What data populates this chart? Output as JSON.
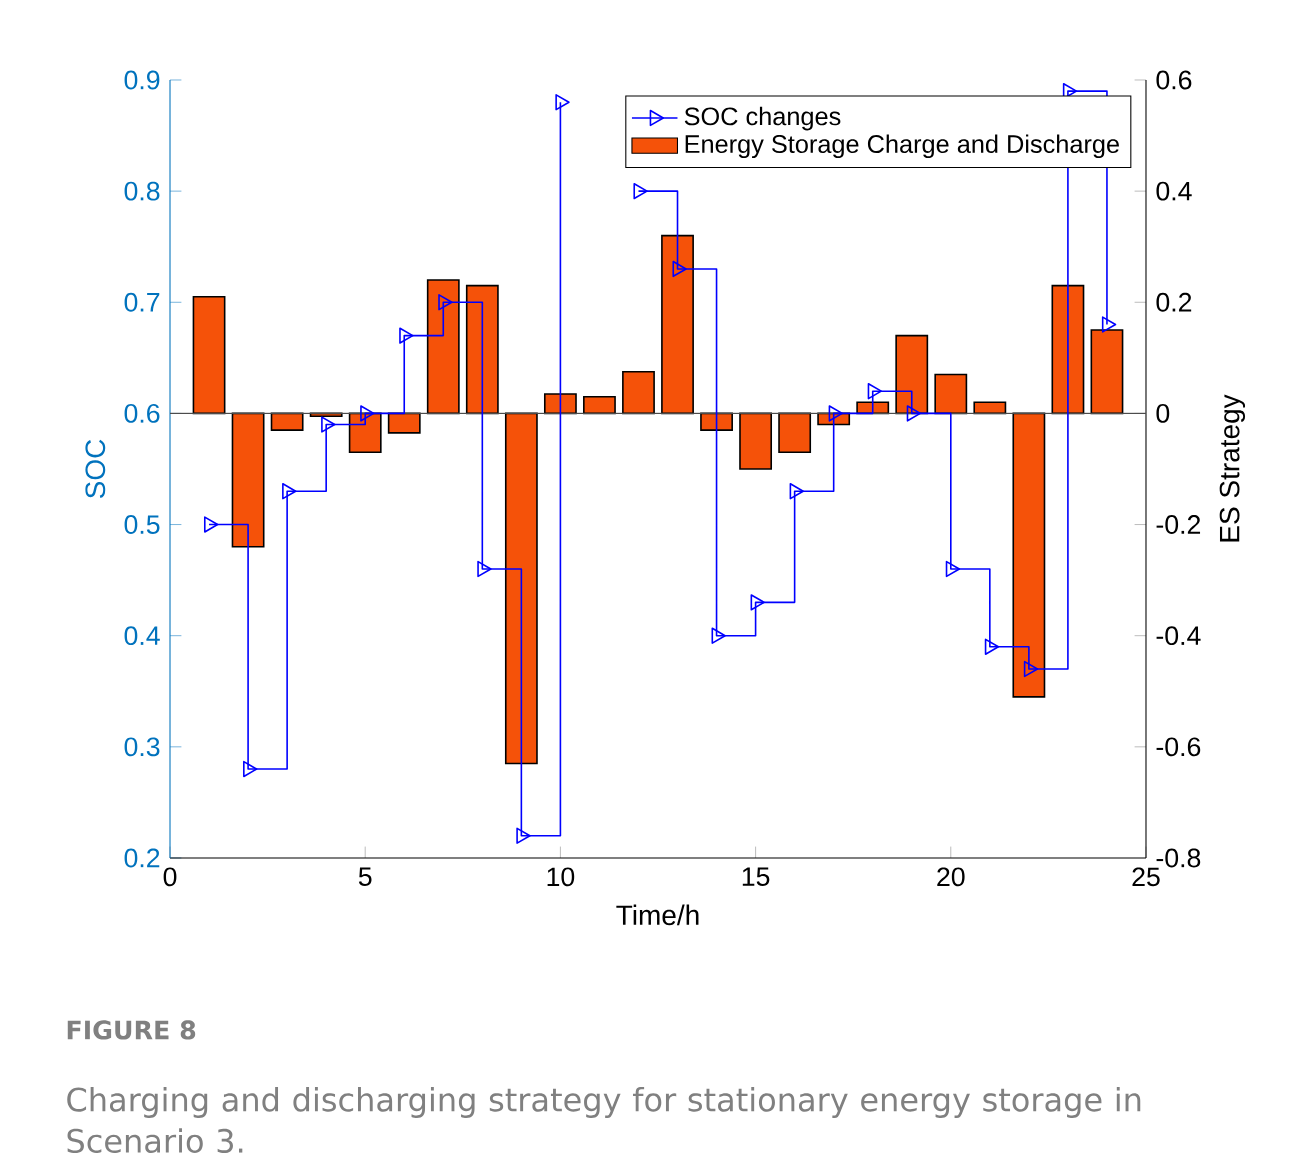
{
  "chart_data": {
    "type": "bar",
    "xlabel": "Time/h",
    "ylabel": "SOC",
    "y2label": "ES Strategy",
    "x": [
      1,
      2,
      3,
      4,
      5,
      6,
      7,
      8,
      9,
      10,
      11,
      12,
      13,
      14,
      15,
      16,
      17,
      18,
      19,
      20,
      21,
      22,
      23,
      24
    ],
    "series": [
      {
        "name": "SOC changes",
        "type": "step",
        "color": "#0000ff",
        "values": [
          0.5,
          0.28,
          0.53,
          0.59,
          0.6,
          0.67,
          0.7,
          0.46,
          0.22,
          0.88,
          null,
          0.8,
          0.73,
          0.4,
          0.43,
          0.53,
          0.6,
          0.62,
          0.6,
          0.46,
          0.39,
          0.37,
          0.89,
          0.68
        ]
      },
      {
        "name": "Energy Storage Charge and Discharge",
        "axis": "y2",
        "color": "#f55209",
        "values": [
          0.21,
          -0.24,
          -0.03,
          -0.005,
          -0.07,
          -0.035,
          0.24,
          0.23,
          -0.63,
          0.035,
          0.03,
          0.075,
          0.32,
          -0.03,
          -0.1,
          -0.07,
          -0.02,
          0.02,
          0.14,
          0.07,
          0.02,
          -0.51,
          0.23,
          0.15
        ]
      }
    ],
    "xlim": [
      0,
      25
    ],
    "xticks": [
      0,
      5,
      10,
      15,
      20,
      25
    ],
    "ylim": [
      0.2,
      0.9
    ],
    "yticks": [
      0.2,
      0.3,
      0.4,
      0.5,
      0.6,
      0.7,
      0.8,
      0.9
    ],
    "y2lim": [
      -0.8,
      0.6
    ],
    "y2ticks": [
      -0.8,
      -0.6,
      -0.4,
      -0.2,
      0,
      0.2,
      0.4,
      0.6
    ],
    "marker": "triangle",
    "legend": "top right",
    "annotations": [
      "FIGURE 8",
      "Charging and discharging strategy for stationary energy storage in Scenario 3."
    ]
  }
}
